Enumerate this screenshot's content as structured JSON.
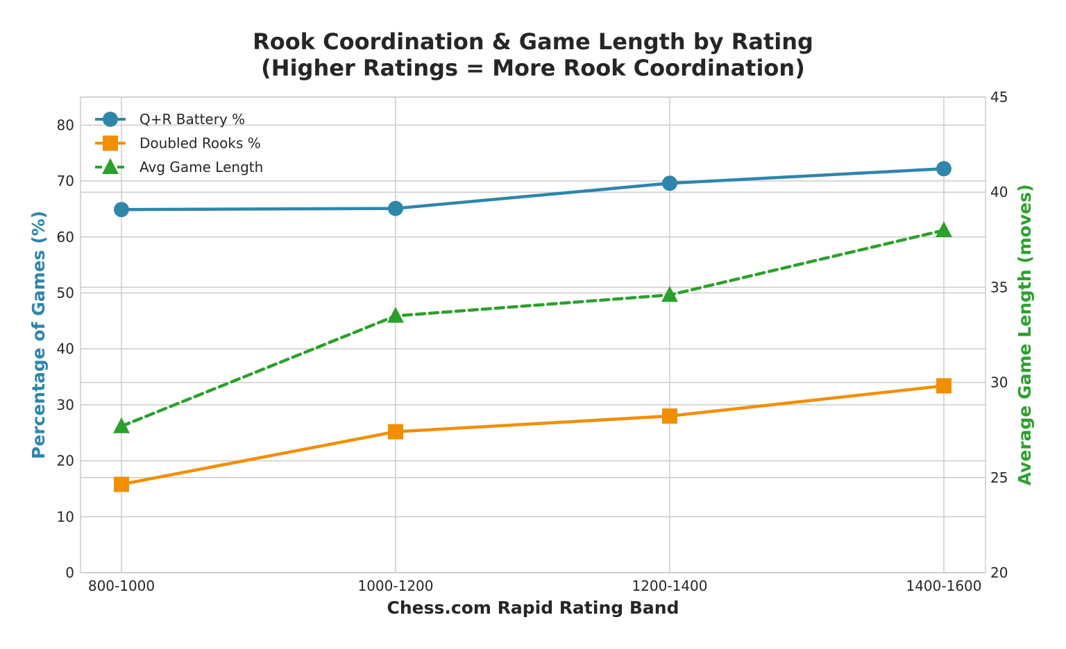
{
  "chart_data": {
    "type": "line",
    "title": "Rook Coordination & Game Length by Rating",
    "subtitle": "(Higher Ratings = More Rook Coordination)",
    "xlabel": "Chess.com Rapid Rating Band",
    "ylabel_left": "Percentage of Games (%)",
    "ylabel_right": "Average Game Length (moves)",
    "categories": [
      "800-1000",
      "1000-1200",
      "1200-1400",
      "1400-1600"
    ],
    "ylim_left": [
      0,
      85
    ],
    "yticks_left": [
      "0",
      "10",
      "20",
      "30",
      "40",
      "50",
      "60",
      "70",
      "80"
    ],
    "ylim_right": [
      20,
      45
    ],
    "yticks_right": [
      "20",
      "25",
      "30",
      "35",
      "40",
      "45"
    ],
    "grid": true,
    "legend_position": "top-left",
    "series": [
      {
        "name": "Q+R Battery %",
        "axis": "left",
        "values": [
          64.9,
          65.1,
          69.6,
          72.2
        ],
        "color": "#2e86ab",
        "marker": "circle",
        "dash": "solid"
      },
      {
        "name": "Doubled Rooks %",
        "axis": "left",
        "values": [
          15.8,
          25.2,
          28.0,
          33.4
        ],
        "color": "#f18f01",
        "marker": "square",
        "dash": "solid"
      },
      {
        "name": "Avg Game Length",
        "axis": "right",
        "values": [
          27.7,
          33.5,
          34.6,
          38.0
        ],
        "color": "#2ca02c",
        "marker": "triangle",
        "dash": "dashed"
      }
    ]
  }
}
